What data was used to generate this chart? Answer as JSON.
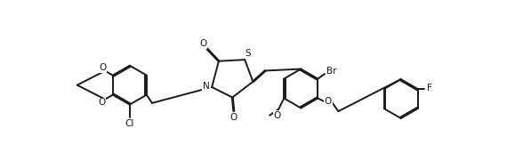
{
  "bg_color": "#ffffff",
  "line_color": "#1a1a1a",
  "lw": 1.4,
  "figsize": [
    5.88,
    1.81
  ],
  "dpi": 100,
  "fs": 7.5,
  "xlim": [
    0,
    5.88
  ],
  "ylim": [
    0,
    1.81
  ],
  "R": 0.285
}
